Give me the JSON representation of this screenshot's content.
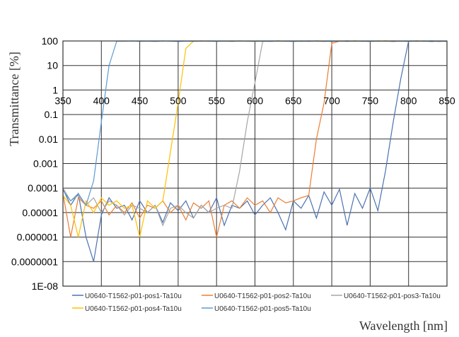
{
  "chart_data": {
    "type": "line",
    "title": "",
    "xlabel": "Wavelength [nm]",
    "ylabel": "Transmittance [%]",
    "xlim": [
      350,
      850
    ],
    "ylim": [
      1e-08,
      100
    ],
    "yscale": "log",
    "grid": true,
    "legend_placement": "bottom",
    "x_ticks": [
      "350",
      "400",
      "450",
      "500",
      "550",
      "600",
      "650",
      "700",
      "750",
      "800",
      "850"
    ],
    "y_ticks": [
      "100",
      "10",
      "1",
      "0.1",
      "0.01",
      "0.001",
      "0.0001",
      "0.00001",
      "0.000001",
      "0.0000001",
      "1E-08"
    ],
    "x": [
      350,
      360,
      370,
      380,
      390,
      400,
      410,
      420,
      430,
      440,
      450,
      460,
      470,
      480,
      490,
      500,
      510,
      520,
      530,
      540,
      550,
      560,
      570,
      580,
      590,
      600,
      610,
      620,
      630,
      640,
      650,
      660,
      670,
      680,
      690,
      700,
      710,
      720,
      730,
      740,
      750,
      760,
      770,
      780,
      790,
      800,
      810,
      820,
      830,
      840,
      850
    ],
    "series": [
      {
        "name": "U0640-T1562-p01-pos1-Ta10u",
        "color": "#4a72b0",
        "values": [
          9e-05,
          2e-05,
          6e-05,
          1e-06,
          1e-07,
          8e-06,
          4e-05,
          1.5e-05,
          2e-05,
          5e-06,
          3e-05,
          1e-05,
          2e-05,
          4e-06,
          2.5e-05,
          1.2e-05,
          3e-05,
          6e-06,
          2e-05,
          1e-05,
          4e-05,
          3e-06,
          2e-05,
          1.5e-05,
          3e-05,
          8e-06,
          2e-05,
          4e-05,
          1e-05,
          2e-06,
          3e-05,
          1.5e-05,
          5e-05,
          6e-06,
          7e-05,
          2e-05,
          9e-05,
          3e-06,
          6e-05,
          1.5e-05,
          0.0001,
          1.2e-05,
          0.0005,
          0.05,
          3,
          98,
          99,
          97,
          100,
          96,
          98
        ]
      },
      {
        "name": "U0640-T1562-p01-pos2-Ta10u",
        "color": "#ed7d31",
        "values": [
          6e-05,
          1e-06,
          4e-05,
          2e-05,
          1.5e-05,
          3e-05,
          8e-06,
          2e-05,
          1e-05,
          2.5e-05,
          6e-06,
          2e-05,
          1.5e-05,
          3e-05,
          1e-05,
          2e-05,
          5e-06,
          2.5e-05,
          1.5e-05,
          3e-05,
          1e-06,
          2e-05,
          3e-05,
          1.5e-05,
          4e-05,
          2e-05,
          3e-05,
          1e-05,
          4e-05,
          2.5e-05,
          3e-05,
          4e-05,
          5e-05,
          0.01,
          0.3,
          80,
          98,
          100,
          97,
          99,
          96,
          100,
          98,
          95,
          99,
          97,
          100,
          98,
          96,
          99,
          97
        ]
      },
      {
        "name": "U0640-T1562-p01-pos3-Ta10u",
        "color": "#a5a5a5",
        "values": [
          0.0001,
          3e-05,
          5e-05,
          2e-05,
          4e-05,
          1e-05,
          3e-05,
          2e-05,
          8e-06,
          2e-05,
          1.5e-05,
          1e-05,
          2e-05,
          3e-06,
          1.5e-05,
          2e-05,
          1e-05,
          6e-06,
          2e-05,
          1e-05,
          1.5e-05,
          2e-05,
          1.5e-05,
          0.0005,
          0.05,
          2,
          95,
          98,
          100,
          97,
          99,
          96,
          100,
          98,
          95,
          99,
          97,
          100,
          98,
          96,
          99,
          97,
          100,
          98,
          97,
          99,
          96,
          100,
          98,
          95,
          99
        ]
      },
      {
        "name": "U0640-T1562-p01-pos4-Ta10u",
        "color": "#ffc000",
        "values": [
          5e-05,
          2e-05,
          1e-06,
          3e-05,
          1e-05,
          4e-05,
          2e-05,
          3e-05,
          1.5e-05,
          2e-05,
          1e-06,
          3e-05,
          1.5e-05,
          3e-05,
          0.003,
          0.3,
          50,
          98,
          98,
          100,
          97,
          99,
          96,
          100,
          98,
          95,
          99,
          97,
          100,
          98,
          96,
          99,
          97,
          100,
          98,
          97,
          99,
          96,
          100,
          98,
          95,
          99,
          97,
          100,
          98,
          96,
          99,
          97,
          100,
          98,
          96
        ]
      },
      {
        "name": "U0640-T1562-p01-pos5-Ta10u",
        "color": "#5b9bd5",
        "values": [
          8e-05,
          3e-05,
          6e-05,
          2e-05,
          0.0002,
          0.05,
          10,
          98,
          98,
          100,
          97,
          99,
          96,
          100,
          98,
          95,
          99,
          97,
          100,
          98,
          96,
          99,
          97,
          100,
          98,
          97,
          99,
          96,
          100,
          98,
          95,
          99,
          97,
          100,
          98,
          96,
          99,
          97,
          100,
          98,
          96,
          98,
          100,
          97,
          99,
          96,
          100,
          98,
          95,
          99,
          97
        ]
      }
    ]
  }
}
